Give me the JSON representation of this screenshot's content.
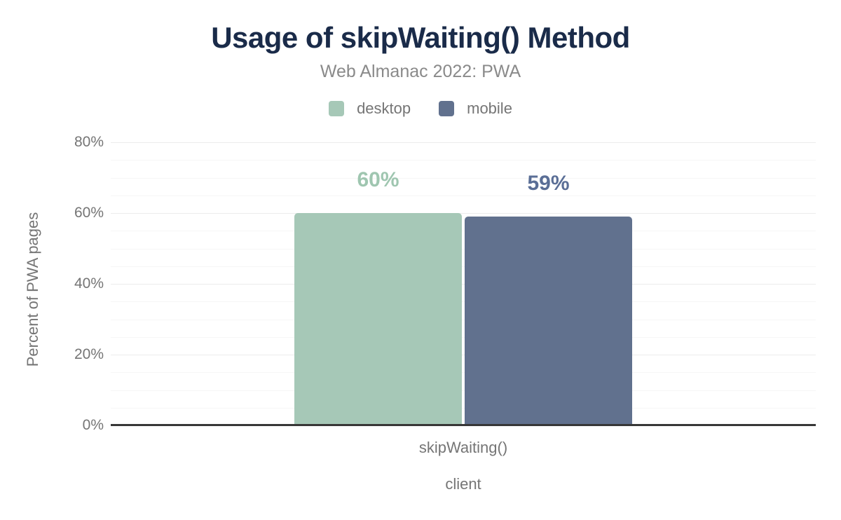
{
  "chart_data": {
    "type": "bar",
    "title": "Usage of skipWaiting() Method",
    "subtitle": "Web Almanac 2022: PWA",
    "categories": [
      "skipWaiting()"
    ],
    "series": [
      {
        "name": "desktop",
        "values": [
          60
        ],
        "color": "#a6c8b7",
        "label_color": "#9fc6b0"
      },
      {
        "name": "mobile",
        "values": [
          59
        ],
        "color": "#61718e",
        "label_color": "#5a6e96"
      }
    ],
    "value_suffix": "%",
    "xlabel": "client",
    "ylabel": "Percent of PWA pages",
    "ylim": [
      0,
      80
    ],
    "yticks": [
      0,
      20,
      40,
      60,
      80
    ],
    "ytick_labels": [
      "0%",
      "20%",
      "40%",
      "60%",
      "80%"
    ],
    "minor_grid_step": 5,
    "major_grid_step": 20,
    "grid": true,
    "legend_position": "top"
  },
  "colors": {
    "title": "#1a2b49",
    "subtitle": "#8a8a8a",
    "axis_text": "#757575",
    "grid_minor": "#f6f6f6",
    "grid_major": "#ececec",
    "baseline": "#373737",
    "background": "#ffffff"
  }
}
